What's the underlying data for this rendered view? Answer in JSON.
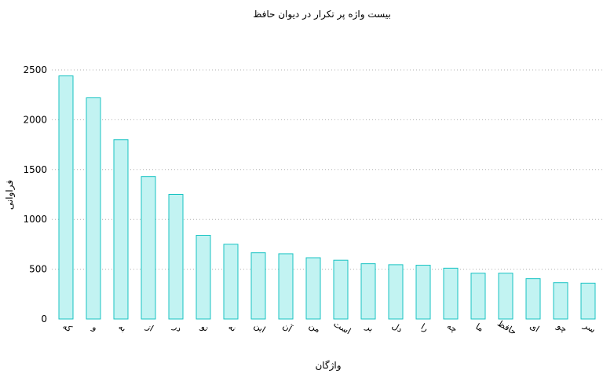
{
  "chart_data": {
    "type": "bar",
    "title": "بیست واژه پر تکرار در دیوان حافظ",
    "xlabel": "واژگان",
    "ylabel": "فراوانی",
    "ylim": [
      0,
      2500
    ],
    "yticks": [
      0,
      500,
      1000,
      1500,
      2000,
      2500
    ],
    "grid": "horizontal dotted",
    "colors": {
      "bar_fill": "#c2f3f2",
      "bar_stroke": "#19c3c3",
      "grid": "#b0b0b0"
    },
    "categories": [
      "که",
      "و",
      "به",
      "از",
      "در",
      "تو",
      "نه",
      "این",
      "آن",
      "من",
      "است",
      "بر",
      "دل",
      "را",
      "چه",
      "ما",
      "حافظ",
      "ای",
      "چو",
      "سر"
    ],
    "values": [
      2440,
      2220,
      1800,
      1430,
      1250,
      840,
      750,
      665,
      655,
      615,
      590,
      555,
      545,
      540,
      510,
      460,
      460,
      405,
      365,
      360
    ]
  }
}
